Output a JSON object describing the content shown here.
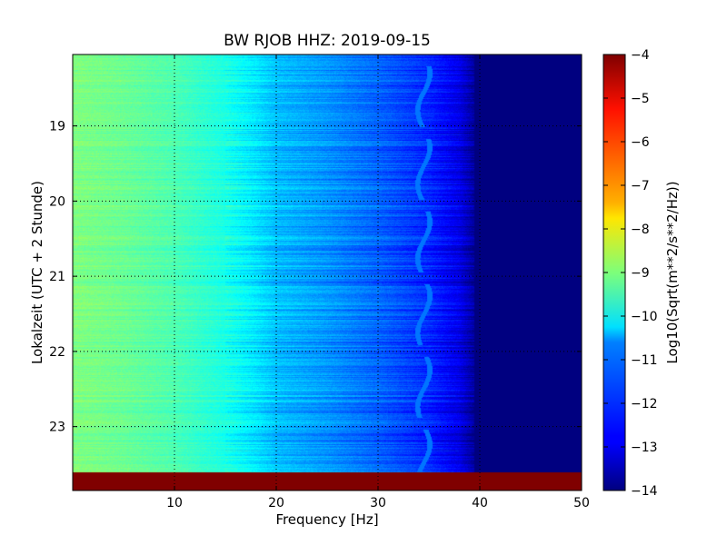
{
  "chart_data": {
    "type": "heatmap",
    "title": "BW RJOB HHZ: 2019-09-15",
    "xlabel": "Frequency [Hz]",
    "ylabel": "Lokalzeit (UTC + 2 Stunde)",
    "colorbar_label": "Log10(Sqrt(m**2/s**2/Hz))",
    "xlim": [
      0,
      50
    ],
    "ylim": [
      18.05,
      23.85
    ],
    "y_inverted": true,
    "x_ticks": [
      10,
      20,
      30,
      40,
      50
    ],
    "y_ticks": [
      19,
      20,
      21,
      22,
      23
    ],
    "colorbar_ticks": [
      -4,
      -5,
      -6,
      -7,
      -8,
      -9,
      -10,
      -11,
      -12,
      -13,
      -14
    ],
    "color_range": [
      -14,
      -4
    ],
    "colormap": "jet",
    "grid": true,
    "spectrum_profile": {
      "frequency_hz": [
        0,
        5,
        10,
        15,
        18,
        20,
        25,
        30,
        35,
        38,
        40,
        50
      ],
      "log10_psd": [
        -9.0,
        -9.2,
        -9.5,
        -10.0,
        -10.5,
        -10.9,
        -11.3,
        -11.8,
        -12.4,
        -13.0,
        -14.0,
        -14.0
      ]
    },
    "line_feature": {
      "frequency_hz": 34.5,
      "log10_psd": -11.6
    },
    "no_data_band": {
      "time_from": 23.6,
      "time_to": 23.85,
      "log10_psd": -4
    }
  }
}
